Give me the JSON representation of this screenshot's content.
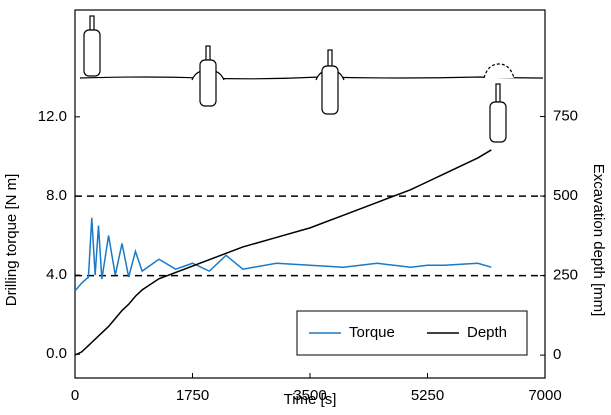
{
  "chart_data": {
    "type": "line",
    "x_label": "Time  [s]",
    "y_label": "Drilling torque [N m]",
    "y2_label": "Excavation depth [mm]",
    "x": [
      0,
      100,
      200,
      250,
      300,
      350,
      400,
      500,
      600,
      700,
      800,
      900,
      1000,
      1250,
      1500,
      1750,
      2000,
      2250,
      2500,
      3000,
      3500,
      4000,
      4500,
      5000,
      5250,
      5500,
      6000,
      6200
    ],
    "series": [
      {
        "name": "Torque",
        "color": "#1a7ac8",
        "axis": "y",
        "values": [
          3.2,
          3.6,
          3.9,
          6.9,
          4.0,
          6.5,
          3.8,
          6.0,
          4.0,
          5.6,
          3.9,
          5.2,
          4.2,
          4.8,
          4.3,
          4.6,
          4.2,
          5.0,
          4.3,
          4.6,
          4.5,
          4.4,
          4.6,
          4.4,
          4.5,
          4.5,
          4.6,
          4.4
        ]
      },
      {
        "name": "Depth",
        "color": "#000000",
        "axis": "y2",
        "values": [
          0,
          10,
          30,
          40,
          50,
          60,
          70,
          90,
          115,
          140,
          160,
          185,
          205,
          240,
          260,
          280,
          300,
          320,
          340,
          370,
          400,
          440,
          480,
          520,
          545,
          570,
          620,
          645
        ]
      }
    ],
    "xlim": [
      0,
      7000
    ],
    "xticks": [
      0,
      1750,
      3500,
      5250,
      7000
    ],
    "ylim": [
      -1.2,
      17.4
    ],
    "yticks": [
      {
        "value": 0,
        "label": "0.0"
      },
      {
        "value": 4,
        "label": "4.0"
      },
      {
        "value": 8,
        "label": "8.0"
      },
      {
        "value": 12,
        "label": "12.0"
      }
    ],
    "y2lim": [
      -72,
      1085
    ],
    "y2ticks": [
      0,
      250,
      500,
      750
    ],
    "dashed_lines_y2": [
      250,
      500
    ],
    "legend": "lower right"
  }
}
